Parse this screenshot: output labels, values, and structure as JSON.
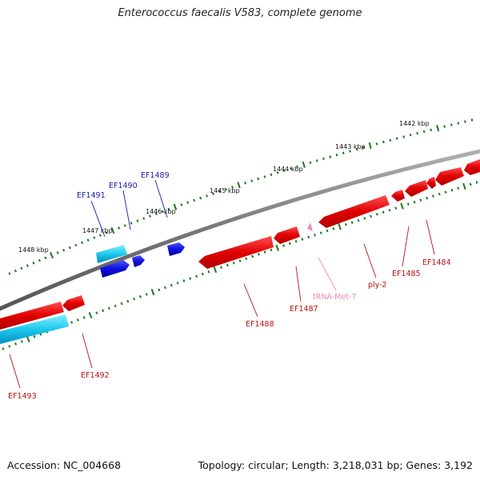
{
  "title": "Enterococcus faecalis V583, complete genome",
  "footer": {
    "accession": "Accession: NC_004668",
    "summary": "Topology: circular; Length: 3,218,031 bp; Genes: 3,192"
  },
  "scale": {
    "unit": "kbp",
    "labels": [
      {
        "text": "1442 kbp",
        "kb": 1442
      },
      {
        "text": "1443 kbp",
        "kb": 1443
      },
      {
        "text": "1444 kbp",
        "kb": 1444
      },
      {
        "text": "1445 kbp",
        "kb": 1445
      },
      {
        "text": "1446 kbp",
        "kb": 1446
      },
      {
        "text": "1447 kbp",
        "kb": 1447
      },
      {
        "text": "1448 kbp",
        "kb": 1448
      }
    ]
  },
  "genes": [
    {
      "label": "EF1484",
      "strand": "reverse",
      "color": "#cc1111"
    },
    {
      "label": "EF1485",
      "strand": "reverse",
      "color": "#cc1111"
    },
    {
      "label": "ply-2",
      "strand": "reverse",
      "color": "#cc1111"
    },
    {
      "label": "tRNA-Met-7",
      "strand": "reverse",
      "color": "#ee88bb"
    },
    {
      "label": "EF1487",
      "strand": "reverse",
      "color": "#cc1111"
    },
    {
      "label": "EF1488",
      "strand": "reverse",
      "color": "#cc1111"
    },
    {
      "label": "EF1489",
      "strand": "forward",
      "color": "#1a1acc"
    },
    {
      "label": "EF1490",
      "strand": "forward",
      "color": "#1a1acc"
    },
    {
      "label": "EF1491",
      "strand": "forward",
      "color": "#1a1acc"
    },
    {
      "label": "EF1492",
      "strand": "reverse",
      "color": "#cc1111"
    },
    {
      "label": "EF1493",
      "strand": "reverse",
      "color": "#cc1111"
    }
  ],
  "colors": {
    "backbone": "#888888",
    "tick": "#1a7a1a",
    "forward_label": "#1a1aaa",
    "reverse_label": "#bb1111",
    "trna_label": "#ee88bb"
  }
}
